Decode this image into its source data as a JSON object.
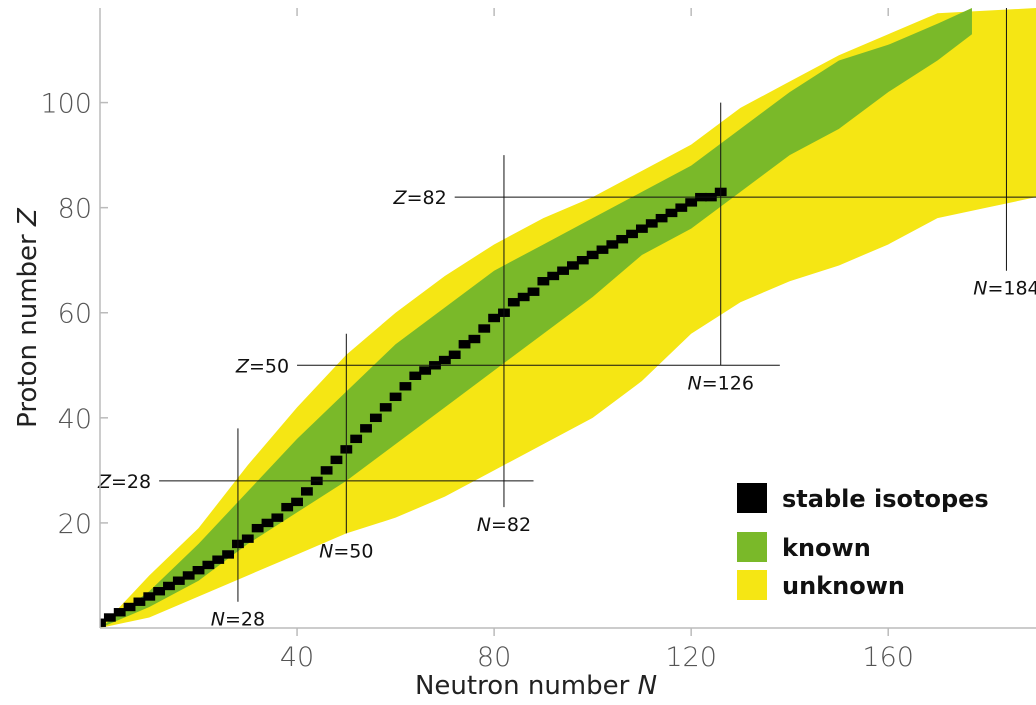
{
  "chart_data": {
    "type": "area",
    "title": "",
    "xlabel": "Neutron number",
    "xlabel_var": "N",
    "ylabel": "Proton number",
    "ylabel_var": "Z",
    "xlim": [
      0,
      190
    ],
    "ylim": [
      0,
      118
    ],
    "x_ticks": [
      40,
      80,
      120,
      160
    ],
    "y_ticks": [
      20,
      40,
      60,
      80,
      100
    ],
    "grid": false,
    "legend_position": "bottom-right",
    "legend": [
      {
        "key": "stable",
        "label": "stable isotopes",
        "color": "#000000"
      },
      {
        "key": "known",
        "label": "known",
        "color": "#7ab929"
      },
      {
        "key": "unknown",
        "label": "unknown",
        "color": "#f5e614"
      }
    ],
    "regions": {
      "unknown": {
        "upper": [
          [
            0,
            0
          ],
          [
            10,
            10
          ],
          [
            20,
            19
          ],
          [
            30,
            31
          ],
          [
            40,
            42
          ],
          [
            50,
            52
          ],
          [
            60,
            60
          ],
          [
            70,
            67
          ],
          [
            80,
            73
          ],
          [
            90,
            78
          ],
          [
            100,
            82
          ],
          [
            110,
            87
          ],
          [
            120,
            92
          ],
          [
            130,
            99
          ],
          [
            140,
            104
          ],
          [
            150,
            109
          ],
          [
            160,
            113
          ],
          [
            170,
            117
          ],
          [
            190,
            118
          ]
        ],
        "lower": [
          [
            0,
            0
          ],
          [
            10,
            2
          ],
          [
            20,
            6
          ],
          [
            30,
            10
          ],
          [
            40,
            14
          ],
          [
            50,
            18
          ],
          [
            60,
            21
          ],
          [
            70,
            25
          ],
          [
            80,
            30
          ],
          [
            90,
            35
          ],
          [
            100,
            40
          ],
          [
            110,
            47
          ],
          [
            120,
            56
          ],
          [
            130,
            62
          ],
          [
            140,
            66
          ],
          [
            150,
            69
          ],
          [
            160,
            73
          ],
          [
            170,
            78
          ],
          [
            180,
            80
          ],
          [
            190,
            82
          ]
        ]
      },
      "known": {
        "upper": [
          [
            0,
            0
          ],
          [
            10,
            7
          ],
          [
            20,
            16
          ],
          [
            30,
            26
          ],
          [
            40,
            36
          ],
          [
            50,
            45
          ],
          [
            60,
            54
          ],
          [
            70,
            61
          ],
          [
            80,
            68
          ],
          [
            90,
            73
          ],
          [
            100,
            78
          ],
          [
            110,
            83
          ],
          [
            120,
            88
          ],
          [
            130,
            95
          ],
          [
            140,
            102
          ],
          [
            150,
            108
          ],
          [
            160,
            111
          ],
          [
            170,
            115
          ],
          [
            177,
            118
          ]
        ],
        "lower": [
          [
            0,
            0
          ],
          [
            10,
            4
          ],
          [
            20,
            9
          ],
          [
            30,
            16
          ],
          [
            40,
            22
          ],
          [
            50,
            28
          ],
          [
            60,
            35
          ],
          [
            70,
            42
          ],
          [
            80,
            49
          ],
          [
            90,
            56
          ],
          [
            100,
            63
          ],
          [
            110,
            71
          ],
          [
            120,
            76
          ],
          [
            130,
            83
          ],
          [
            140,
            90
          ],
          [
            150,
            95
          ],
          [
            160,
            102
          ],
          [
            170,
            108
          ],
          [
            177,
            113
          ]
        ]
      },
      "stable_isotopes": [
        [
          0,
          1
        ],
        [
          2,
          2
        ],
        [
          4,
          3
        ],
        [
          6,
          4
        ],
        [
          8,
          5
        ],
        [
          10,
          6
        ],
        [
          12,
          7
        ],
        [
          14,
          8
        ],
        [
          16,
          9
        ],
        [
          18,
          10
        ],
        [
          20,
          11
        ],
        [
          22,
          12
        ],
        [
          24,
          13
        ],
        [
          26,
          14
        ],
        [
          28,
          16
        ],
        [
          30,
          17
        ],
        [
          32,
          19
        ],
        [
          34,
          20
        ],
        [
          36,
          21
        ],
        [
          38,
          23
        ],
        [
          40,
          24
        ],
        [
          42,
          26
        ],
        [
          44,
          28
        ],
        [
          46,
          30
        ],
        [
          48,
          32
        ],
        [
          50,
          34
        ],
        [
          52,
          36
        ],
        [
          54,
          38
        ],
        [
          56,
          40
        ],
        [
          58,
          42
        ],
        [
          60,
          44
        ],
        [
          62,
          46
        ],
        [
          64,
          48
        ],
        [
          66,
          49
        ],
        [
          68,
          50
        ],
        [
          70,
          51
        ],
        [
          72,
          52
        ],
        [
          74,
          54
        ],
        [
          76,
          55
        ],
        [
          78,
          57
        ],
        [
          80,
          59
        ],
        [
          82,
          60
        ],
        [
          84,
          62
        ],
        [
          86,
          63
        ],
        [
          88,
          64
        ],
        [
          90,
          66
        ],
        [
          92,
          67
        ],
        [
          94,
          68
        ],
        [
          96,
          69
        ],
        [
          98,
          70
        ],
        [
          100,
          71
        ],
        [
          102,
          72
        ],
        [
          104,
          73
        ],
        [
          106,
          74
        ],
        [
          108,
          75
        ],
        [
          110,
          76
        ],
        [
          112,
          77
        ],
        [
          114,
          78
        ],
        [
          116,
          79
        ],
        [
          118,
          80
        ],
        [
          120,
          81
        ],
        [
          122,
          82
        ],
        [
          124,
          82
        ],
        [
          126,
          83
        ]
      ]
    },
    "magic_lines": [
      {
        "axis": "Z",
        "value": 28,
        "var": "Z",
        "num": "28",
        "from": 12,
        "to": 88
      },
      {
        "axis": "Z",
        "value": 50,
        "var": "Z",
        "num": "50",
        "from": 40,
        "to": 138
      },
      {
        "axis": "Z",
        "value": 82,
        "var": "Z",
        "num": "82",
        "from": 72,
        "to": 190
      },
      {
        "axis": "N",
        "value": 28,
        "var": "N",
        "num": "28",
        "from": 5,
        "to": 38
      },
      {
        "axis": "N",
        "value": 50,
        "var": "N",
        "num": "50",
        "from": 18,
        "to": 56
      },
      {
        "axis": "N",
        "value": 82,
        "var": "N",
        "num": "82",
        "from": 23,
        "to": 90
      },
      {
        "axis": "N",
        "value": 126,
        "var": "N",
        "num": "126",
        "from": 50,
        "to": 100
      },
      {
        "axis": "N",
        "value": 184,
        "var": "N",
        "num": "184",
        "from": 68,
        "to": 118
      }
    ]
  }
}
